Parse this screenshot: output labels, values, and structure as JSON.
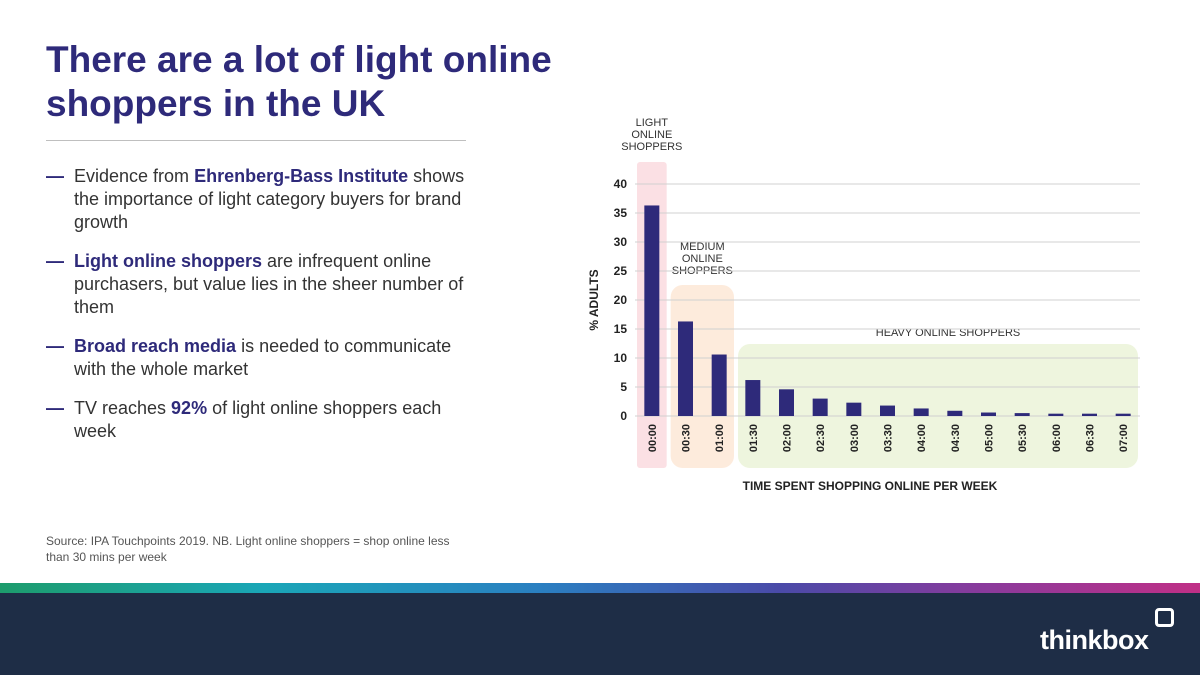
{
  "title": "There are a lot of light online shoppers in the UK",
  "bullets": [
    {
      "before": "Evidence from ",
      "bold": "Ehrenberg-Bass Institute",
      "after": " shows the importance of light category buyers for brand growth"
    },
    {
      "before": "",
      "bold": "Light online shoppers",
      "after": " are infrequent online purchasers, but value lies in the sheer number  of them"
    },
    {
      "before": "",
      "bold": "Broad reach media",
      "after": " is needed to communicate  with the whole market"
    },
    {
      "before": "TV reaches ",
      "bold": "92%",
      "after": " of light online shoppers each week"
    }
  ],
  "source": "Source: IPA Touchpoints 2019. NB. Light online shoppers = shop online less than 30 mins per week",
  "logo": "thinkbox",
  "colors": {
    "title": "#2e2a7a",
    "bar": "#2e2a7a",
    "light_zone": "#fbe0e4",
    "medium_zone": "#fdebdc",
    "heavy_zone": "#eef5de",
    "footer": "#1e2d46"
  },
  "chart_data": {
    "type": "bar",
    "categories": [
      "00:00",
      "00:30",
      "01:00",
      "01:30",
      "02:00",
      "02:30",
      "03:00",
      "03:30",
      "04:00",
      "04:30",
      "05:00",
      "05:30",
      "06:00",
      "06:30",
      "07:00"
    ],
    "values": [
      36.3,
      16.3,
      10.6,
      6.2,
      4.6,
      3.0,
      2.3,
      1.8,
      1.3,
      0.9,
      0.6,
      0.5,
      0.4,
      0.4,
      0.4
    ],
    "xlabel": "TIME SPENT SHOPPING ONLINE PER WEEK",
    "ylabel": "% ADULTS",
    "ylim": [
      0,
      40
    ],
    "yticks": [
      0,
      5,
      10,
      15,
      20,
      25,
      30,
      35,
      40
    ],
    "grid": true,
    "zones": [
      {
        "label_lines": [
          "LIGHT",
          "ONLINE",
          "SHOPPERS"
        ],
        "from": 0,
        "to": 0
      },
      {
        "label_lines": [
          "MEDIUM",
          "ONLINE",
          "SHOPPERS"
        ],
        "from": 1,
        "to": 2
      },
      {
        "label_lines": [
          "HEAVY  ONLINE SHOPPERS"
        ],
        "from": 3,
        "to": 14
      }
    ]
  }
}
